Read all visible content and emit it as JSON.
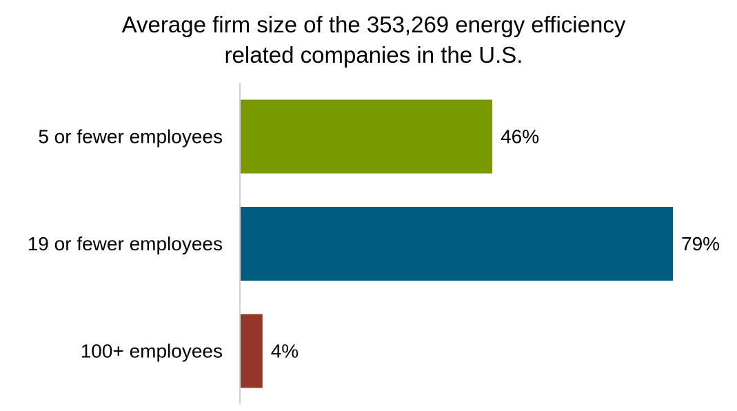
{
  "chart_data": {
    "type": "bar",
    "orientation": "horizontal",
    "title_lines": [
      "Average firm size of the 353,269 energy efficiency",
      "related companies in the U.S."
    ],
    "categories": [
      "5 or fewer employees",
      "19 or fewer employees",
      "100+ employees"
    ],
    "values": [
      46,
      79,
      4
    ],
    "value_labels": [
      "46%",
      "79%",
      "4%"
    ],
    "colors": [
      "#7a9a01",
      "#005b80",
      "#95362b"
    ],
    "axis_color": "#d0d0d0",
    "xlim": [
      0,
      79
    ],
    "grid": false,
    "legend": "none"
  }
}
